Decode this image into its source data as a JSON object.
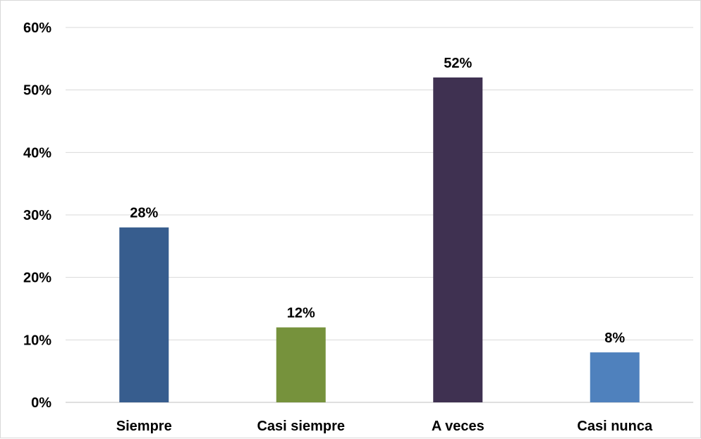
{
  "chart_data": {
    "type": "bar",
    "categories": [
      "Siempre",
      "Casi siempre",
      "A veces",
      "Casi nunca"
    ],
    "values": [
      28,
      12,
      52,
      8
    ],
    "data_labels": [
      "28%",
      "12%",
      "52%",
      "8%"
    ],
    "bar_colors": [
      "#375d8e",
      "#76923c",
      "#3f3151",
      "#4f81bd"
    ],
    "ylim": [
      0,
      60
    ],
    "y_ticks": [
      0,
      10,
      20,
      30,
      40,
      50,
      60
    ],
    "y_tick_labels": [
      "0%",
      "10%",
      "20%",
      "30%",
      "40%",
      "50%",
      "60%"
    ],
    "title": "",
    "xlabel": "",
    "ylabel": "",
    "grid": true,
    "legend": "none"
  }
}
